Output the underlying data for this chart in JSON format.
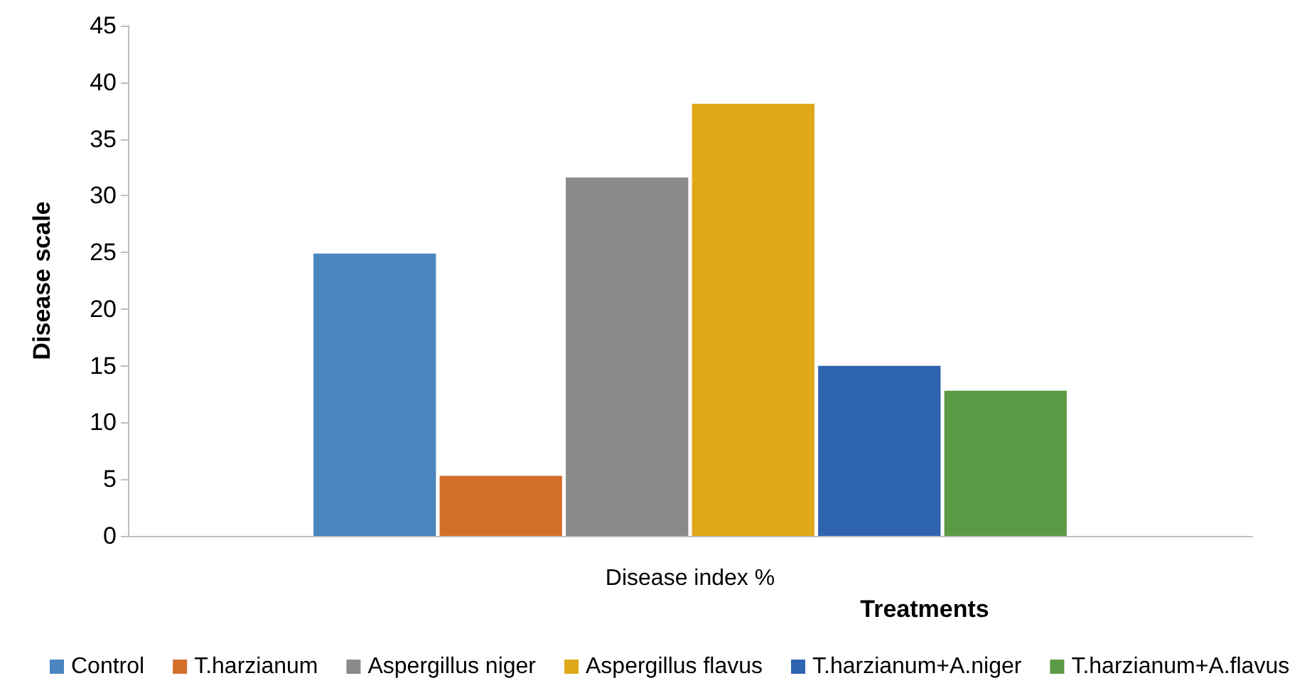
{
  "chart_data": {
    "type": "bar",
    "ylabel": "Disease scale",
    "xlabel": "Treatments",
    "categories": [
      "Disease index %"
    ],
    "ylim": [
      0,
      45
    ],
    "yticks": [
      0,
      5,
      10,
      15,
      20,
      25,
      30,
      35,
      40,
      45
    ],
    "grid": false,
    "legend": "bottom",
    "series": [
      {
        "name": "Control",
        "color": "#4a86c0",
        "values": [
          24.9
        ]
      },
      {
        "name": "T.harzianum",
        "color": "#d46f2a",
        "values": [
          5.3
        ]
      },
      {
        "name": "Aspergillus niger",
        "color": "#888a8c",
        "values": [
          31.6
        ]
      },
      {
        "name": "Aspergillus flavus",
        "color": "#e0a819",
        "values": [
          38.1
        ]
      },
      {
        "name": "T.harzianum+A.niger",
        "color": "#2f64b0",
        "values": [
          15.0
        ]
      },
      {
        "name": "T.harzianum+A.flavus",
        "color": "#5b9a44",
        "values": [
          12.8
        ]
      }
    ]
  }
}
